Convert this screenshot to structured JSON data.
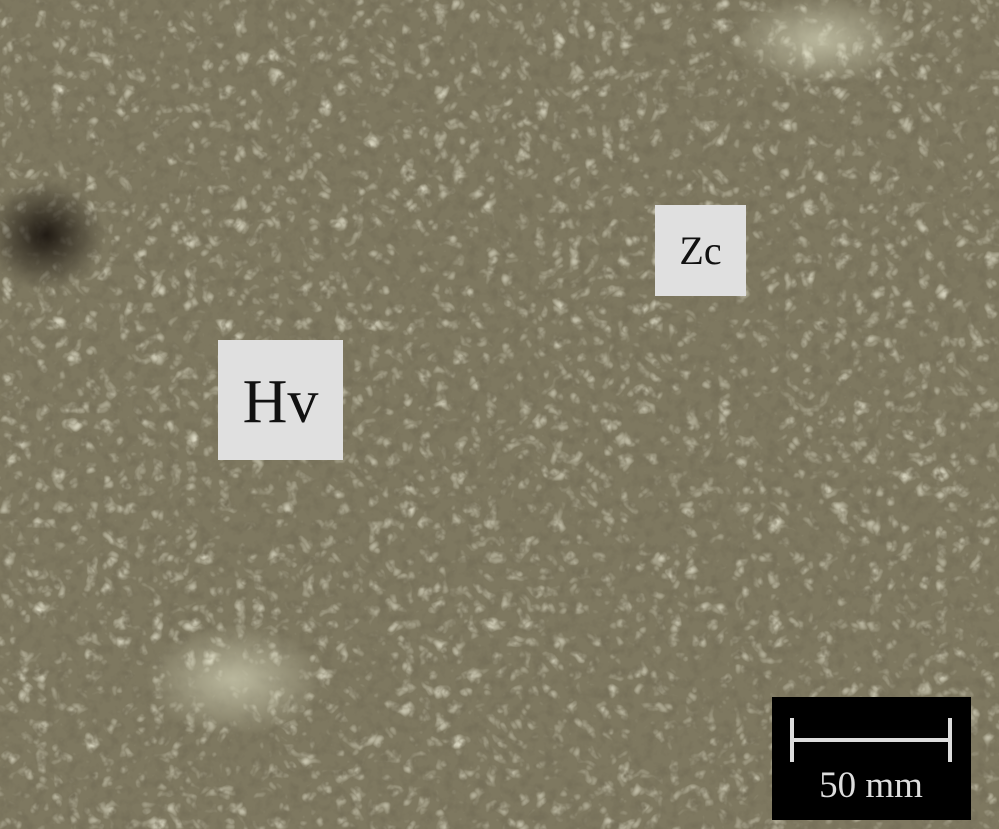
{
  "labels": [
    "Hv",
    "Zc"
  ],
  "scale_bar": {
    "label": "50 mm"
  }
}
